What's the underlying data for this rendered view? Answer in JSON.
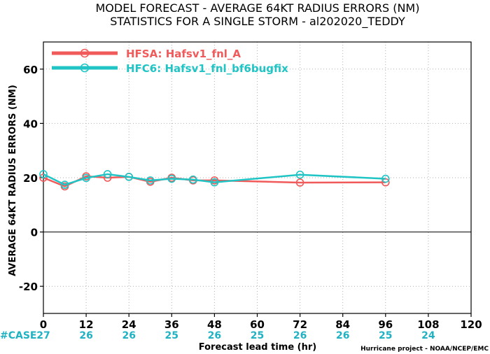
{
  "colors": {
    "hfsa": "#f05a5a",
    "hfc6": "#20c4c4",
    "case": "#20b2c2"
  },
  "chart_data": {
    "type": "line",
    "title": "MODEL FORECAST - AVERAGE 64KT RADIUS ERRORS (NM)",
    "subtitle": "STATISTICS FOR A SINGLE STORM - al202020_TEDDY",
    "xlabel": "Forecast lead time (hr)",
    "ylabel": "AVERAGE 64KT RADIUS ERRORS (NM)",
    "xlim": [
      0,
      120
    ],
    "ylim": [
      -30,
      70
    ],
    "x_ticks": [
      0,
      12,
      24,
      36,
      48,
      60,
      72,
      84,
      96,
      108,
      120
    ],
    "y_ticks": [
      -20,
      0,
      20,
      40,
      60
    ],
    "grid": true,
    "legend_position": "top-left",
    "series": [
      {
        "name": "HFSA: Hafsv1_fnl_A",
        "color": "#f05a5a",
        "x": [
          0,
          6,
          12,
          18,
          24,
          30,
          36,
          42,
          48,
          72,
          96
        ],
        "y": [
          20.0,
          16.8,
          20.5,
          20.0,
          20.3,
          18.5,
          20.0,
          19.0,
          19.0,
          18.2,
          18.3
        ]
      },
      {
        "name": "HFC6: Hafsv1_fnl_bf6bugfix",
        "color": "#20c4c4",
        "x": [
          0,
          6,
          12,
          18,
          24,
          30,
          36,
          42,
          48,
          72,
          96
        ],
        "y": [
          21.3,
          17.4,
          19.9,
          21.3,
          20.3,
          19.0,
          19.6,
          19.3,
          18.3,
          21.1,
          19.6
        ]
      }
    ],
    "case_label": "#CASE",
    "case_counts": [
      {
        "x": 0,
        "n": "27"
      },
      {
        "x": 12,
        "n": "26"
      },
      {
        "x": 24,
        "n": "26"
      },
      {
        "x": 36,
        "n": "25"
      },
      {
        "x": 48,
        "n": "26"
      },
      {
        "x": 60,
        "n": "25"
      },
      {
        "x": 72,
        "n": "26"
      },
      {
        "x": 84,
        "n": "26"
      },
      {
        "x": 96,
        "n": "25"
      },
      {
        "x": 108,
        "n": "24"
      }
    ],
    "credit": "Hurricane project - NOAA/NCEP/EMC"
  }
}
